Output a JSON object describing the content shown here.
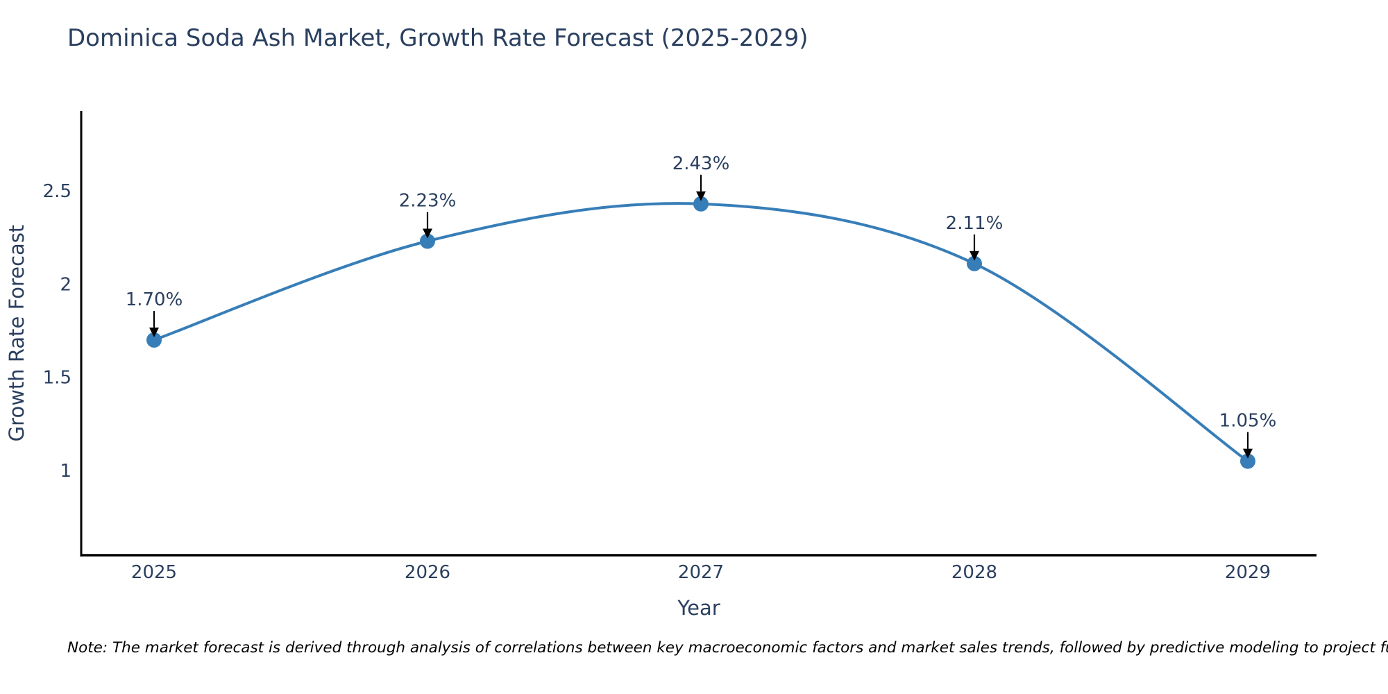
{
  "note": "Note: The market forecast is derived through analysis of correlations between key macroeconomic factors and market sales trends, followed by predictive modeling to project future sales",
  "colors": {
    "background": "#ffffff",
    "line": "#377eb8",
    "marker": "#377eb8",
    "spine": "#000000",
    "arrow": "#000000",
    "chart_text": "#2a3f5f",
    "note_text": "#000000"
  },
  "chart_data": {
    "type": "line",
    "title": "Dominica Soda Ash Market, Growth Rate Forecast (2025-2029)",
    "xlabel": "Year",
    "ylabel": "Growth Rate Forecast",
    "x": [
      2025,
      2026,
      2027,
      2028,
      2029
    ],
    "x_tick_labels": [
      "2025",
      "2026",
      "2027",
      "2028",
      "2029"
    ],
    "series": [
      {
        "name": "Growth Rate Forecast",
        "values": [
          1.7,
          2.23,
          2.43,
          2.11,
          1.05
        ]
      }
    ],
    "point_labels": [
      "1.70%",
      "2.23%",
      "2.43%",
      "2.11%",
      "1.05%"
    ],
    "y_ticks": [
      1,
      1.5,
      2,
      2.5
    ],
    "y_tick_labels": [
      "1",
      "1.5",
      "2",
      "2.5"
    ],
    "xlim": [
      2024.7335,
      2029.2513
    ],
    "ylim": [
      0.546,
      2.928
    ],
    "line_shape": "spline",
    "grid": false,
    "legend": false,
    "annotations_have_arrows": true
  }
}
